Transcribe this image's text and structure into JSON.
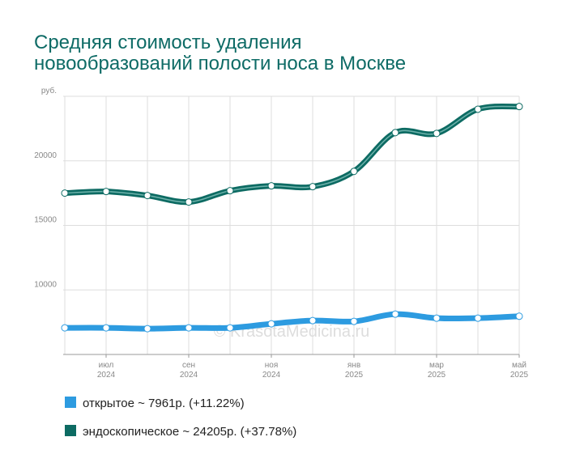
{
  "chart_data": {
    "type": "line",
    "title": [
      "Средняя стоимость удаления",
      "новообразований полости носа в Москве"
    ],
    "watermark": "© KrasotaMedicina.ru",
    "categories": [
      null,
      [
        "июл",
        "2024"
      ],
      null,
      [
        "сен",
        "2024"
      ],
      null,
      [
        "ноя",
        "2024"
      ],
      null,
      [
        "янв",
        "2025"
      ],
      null,
      [
        "мар",
        "2025"
      ],
      null,
      [
        "май",
        "2025"
      ]
    ],
    "series": [
      {
        "name": "открытое ~ 7961р. (+11.22%)",
        "color": "#2d9be0",
        "values": [
          7062,
          7062,
          7000,
          7062,
          7062,
          7375,
          7625,
          7562,
          8125,
          7812,
          7812,
          7961
        ]
      },
      {
        "name": "эндоскопическое ~ 24205р. (+37.78%)",
        "color": "#0d6b63",
        "values": [
          17500,
          17625,
          17312,
          16812,
          17687,
          18062,
          18000,
          19187,
          22187,
          22125,
          24000,
          24205
        ]
      }
    ],
    "ylim": [
      5000,
      25000
    ],
    "yticks": [
      10000,
      15000,
      20000,
      {
        "value": 25000,
        "label": "руб."
      }
    ],
    "grid": true
  }
}
